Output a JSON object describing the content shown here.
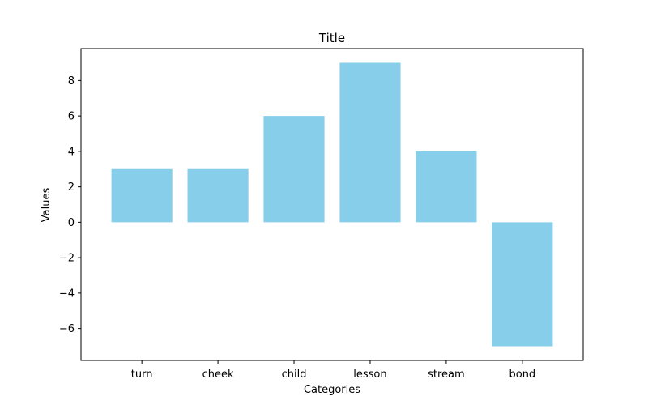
{
  "chart_data": {
    "type": "bar",
    "title": "Title",
    "xlabel": "Categories",
    "ylabel": "Values",
    "categories": [
      "turn",
      "cheek",
      "child",
      "lesson",
      "stream",
      "bond"
    ],
    "values": [
      3,
      3,
      6,
      9,
      4,
      -7
    ],
    "ylim": [
      -7.8,
      9.8
    ],
    "yticks": [
      -6,
      -4,
      -2,
      0,
      2,
      4,
      6,
      8
    ],
    "ytick_labels": [
      "−6",
      "−4",
      "−2",
      "0",
      "2",
      "4",
      "6",
      "8"
    ],
    "bar_color": "#87ceeb",
    "grid": false,
    "legend": "none"
  }
}
